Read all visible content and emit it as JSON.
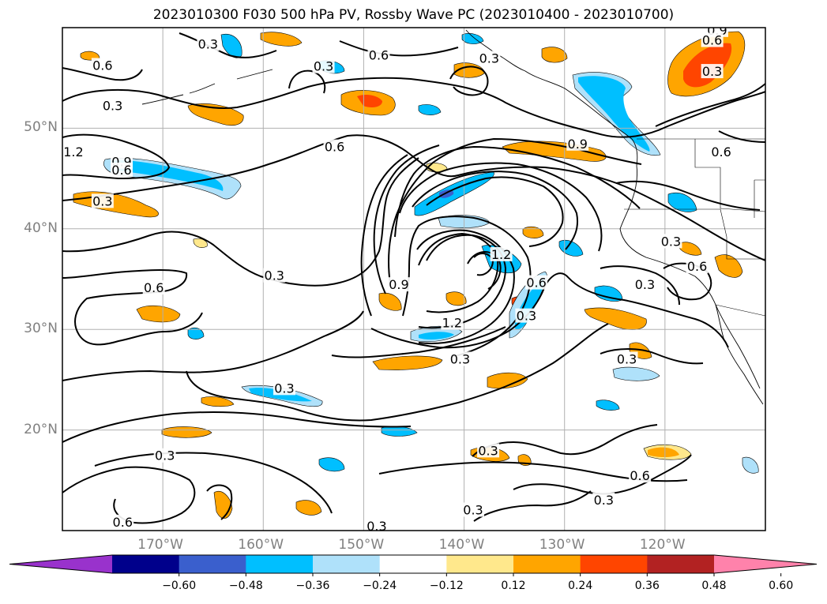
{
  "title": "2023010300 F030 500 hPa PV, Rossby Wave PC (2023010400 - 2023010700)",
  "map": {
    "lat_range": [
      10,
      60
    ],
    "lon_range": [
      -180,
      -110
    ],
    "lat_ticks": [
      {
        "value": 20,
        "label": "20°N"
      },
      {
        "value": 30,
        "label": "30°N"
      },
      {
        "value": 40,
        "label": "40°N"
      },
      {
        "value": 50,
        "label": "50°N"
      }
    ],
    "lon_ticks": [
      {
        "value": -170,
        "label": "170°W"
      },
      {
        "value": -160,
        "label": "160°W"
      },
      {
        "value": -150,
        "label": "150°W"
      },
      {
        "value": -140,
        "label": "140°W"
      },
      {
        "value": -130,
        "label": "130°W"
      },
      {
        "value": -120,
        "label": "120°W"
      }
    ],
    "gridlines": true
  },
  "contour_labels": [
    {
      "lon": -165.5,
      "lat": 58.3,
      "text": "0.3"
    },
    {
      "lon": -176.0,
      "lat": 56.2,
      "text": "0.6"
    },
    {
      "lon": -175.0,
      "lat": 52.2,
      "text": "0.3"
    },
    {
      "lon": -148.5,
      "lat": 57.2,
      "text": "0.6"
    },
    {
      "lon": -137.5,
      "lat": 56.9,
      "text": "0.3"
    },
    {
      "lon": -154.0,
      "lat": 56.1,
      "text": "0.3"
    },
    {
      "lon": -114.8,
      "lat": 59.7,
      "text": "0.9"
    },
    {
      "lon": -115.3,
      "lat": 58.7,
      "text": "0.6"
    },
    {
      "lon": -115.3,
      "lat": 55.6,
      "text": "0.3"
    },
    {
      "lon": -178.9,
      "lat": 47.6,
      "text": "1.2"
    },
    {
      "lon": -174.1,
      "lat": 46.6,
      "text": "0.9"
    },
    {
      "lon": -174.1,
      "lat": 45.8,
      "text": "0.6"
    },
    {
      "lon": -176.0,
      "lat": 42.7,
      "text": "0.3"
    },
    {
      "lon": -152.9,
      "lat": 48.1,
      "text": "0.6"
    },
    {
      "lon": -128.7,
      "lat": 48.4,
      "text": "0.9"
    },
    {
      "lon": -114.4,
      "lat": 47.6,
      "text": "0.6"
    },
    {
      "lon": -170.9,
      "lat": 34.1,
      "text": "0.6"
    },
    {
      "lon": -158.9,
      "lat": 35.3,
      "text": "0.3"
    },
    {
      "lon": -146.5,
      "lat": 34.4,
      "text": "0.9"
    },
    {
      "lon": -136.3,
      "lat": 37.4,
      "text": "1.2"
    },
    {
      "lon": -132.8,
      "lat": 34.6,
      "text": "0.6"
    },
    {
      "lon": -133.8,
      "lat": 31.3,
      "text": "0.3"
    },
    {
      "lon": -141.2,
      "lat": 30.6,
      "text": "1.2"
    },
    {
      "lon": -119.4,
      "lat": 38.7,
      "text": "0.3"
    },
    {
      "lon": -116.8,
      "lat": 36.2,
      "text": "0.6"
    },
    {
      "lon": -122.0,
      "lat": 34.4,
      "text": "0.3"
    },
    {
      "lon": -140.4,
      "lat": 27.0,
      "text": "0.3"
    },
    {
      "lon": -157.9,
      "lat": 24.1,
      "text": "0.3"
    },
    {
      "lon": -123.8,
      "lat": 27.0,
      "text": "0.3"
    },
    {
      "lon": -169.8,
      "lat": 17.4,
      "text": "0.3"
    },
    {
      "lon": -137.6,
      "lat": 17.9,
      "text": "0.3"
    },
    {
      "lon": -122.5,
      "lat": 15.4,
      "text": "0.6"
    },
    {
      "lon": -126.1,
      "lat": 13.0,
      "text": "0.3"
    },
    {
      "lon": -139.1,
      "lat": 12.0,
      "text": "0.3"
    },
    {
      "lon": -174.0,
      "lat": 10.8,
      "text": "0.6"
    },
    {
      "lon": -148.7,
      "lat": 10.4,
      "text": "0.3"
    }
  ],
  "colorbar": {
    "levels": [
      "−0.60",
      "−0.48",
      "−0.36",
      "−0.24",
      "−0.12",
      "0.12",
      "0.24",
      "0.36",
      "0.48",
      "0.60"
    ],
    "colors": [
      "#9932cc",
      "#00008b",
      "#3a5fcd",
      "#00bfff",
      "#afe1fa",
      "#ffffff",
      "#ffe88c",
      "#ffa500",
      "#ff4500",
      "#b22222",
      "#ff82ab"
    ],
    "extend": "both"
  }
}
